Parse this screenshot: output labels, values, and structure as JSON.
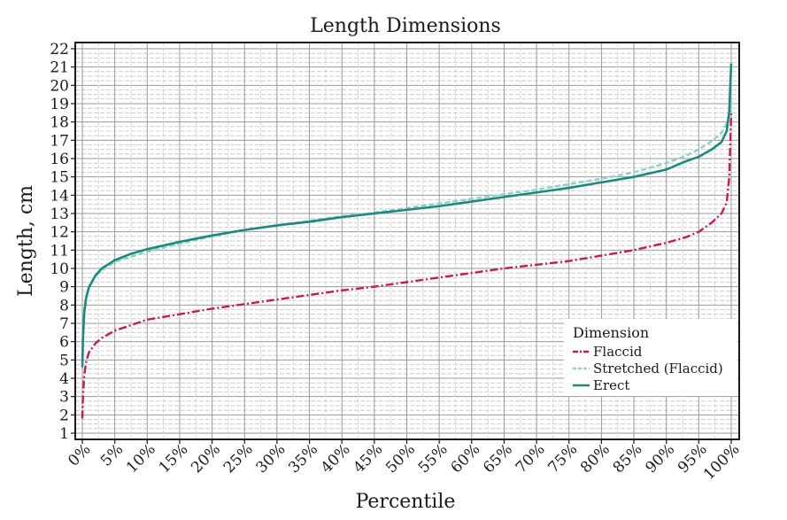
{
  "chart_data": {
    "type": "line",
    "title": "Length Dimensions",
    "xlabel": "Percentile",
    "ylabel": "Length, cm",
    "xlim": [
      0,
      100
    ],
    "ylim": [
      1,
      22
    ],
    "x_ticks": [
      0,
      5,
      10,
      15,
      20,
      25,
      30,
      35,
      40,
      45,
      50,
      55,
      60,
      65,
      70,
      75,
      80,
      85,
      90,
      95,
      100
    ],
    "x_tick_labels": [
      "0%",
      "5%",
      "10%",
      "15%",
      "20%",
      "25%",
      "30%",
      "35%",
      "40%",
      "45%",
      "50%",
      "55%",
      "60%",
      "65%",
      "70%",
      "75%",
      "80%",
      "85%",
      "90%",
      "95%",
      "100%"
    ],
    "y_ticks": [
      1,
      2,
      3,
      4,
      5,
      6,
      7,
      8,
      9,
      10,
      11,
      12,
      13,
      14,
      15,
      16,
      17,
      18,
      19,
      20,
      21,
      22
    ],
    "grid": true,
    "legend": {
      "title": "Dimension",
      "position": "bottom-right"
    },
    "series": [
      {
        "name": "Flaccid",
        "color": "#c8175a",
        "style": "dashdot",
        "x": [
          0,
          0.1,
          0.3,
          0.6,
          1,
          2,
          3,
          5,
          7.5,
          10,
          15,
          20,
          25,
          30,
          35,
          40,
          45,
          50,
          55,
          60,
          65,
          70,
          75,
          80,
          85,
          90,
          93,
          95,
          97,
          98.5,
          99.3,
          99.7,
          100
        ],
        "y": [
          1.8,
          3.0,
          4.2,
          4.9,
          5.4,
          5.9,
          6.2,
          6.6,
          6.9,
          7.2,
          7.5,
          7.8,
          8.05,
          8.3,
          8.55,
          8.8,
          9.0,
          9.25,
          9.5,
          9.75,
          10.0,
          10.2,
          10.4,
          10.7,
          11.0,
          11.4,
          11.7,
          12.0,
          12.5,
          13.0,
          13.6,
          15.0,
          18.5
        ]
      },
      {
        "name": "Stretched (Flaccid)",
        "color": "#8ed2c8",
        "style": "dashed",
        "x": [
          0,
          0.1,
          0.3,
          0.6,
          1,
          2,
          3,
          5,
          7.5,
          10,
          15,
          20,
          25,
          30,
          35,
          40,
          45,
          50,
          55,
          60,
          65,
          70,
          75,
          80,
          85,
          90,
          93,
          95,
          97,
          98.5,
          99.3,
          99.7,
          100
        ],
        "y": [
          5.0,
          6.5,
          7.8,
          8.5,
          9.0,
          9.6,
          9.9,
          10.35,
          10.65,
          10.9,
          11.35,
          11.75,
          12.1,
          12.35,
          12.6,
          12.85,
          13.05,
          13.3,
          13.55,
          13.8,
          14.05,
          14.3,
          14.6,
          14.9,
          15.25,
          15.75,
          16.15,
          16.5,
          16.95,
          17.4,
          17.9,
          18.3,
          19.2
        ]
      },
      {
        "name": "Erect",
        "color": "#1a8a7c",
        "style": "solid",
        "x": [
          0,
          0.1,
          0.3,
          0.6,
          1,
          2,
          3,
          5,
          7.5,
          10,
          15,
          20,
          25,
          30,
          35,
          40,
          45,
          50,
          55,
          60,
          65,
          70,
          75,
          80,
          85,
          90,
          93,
          95,
          97,
          98.5,
          99.3,
          99.7,
          100
        ],
        "y": [
          4.6,
          6.2,
          7.6,
          8.4,
          8.95,
          9.6,
          10.0,
          10.45,
          10.8,
          11.05,
          11.45,
          11.8,
          12.1,
          12.35,
          12.55,
          12.8,
          13.0,
          13.2,
          13.4,
          13.65,
          13.9,
          14.15,
          14.4,
          14.7,
          15.0,
          15.4,
          15.85,
          16.1,
          16.5,
          16.9,
          17.5,
          18.6,
          21.2
        ]
      }
    ]
  }
}
